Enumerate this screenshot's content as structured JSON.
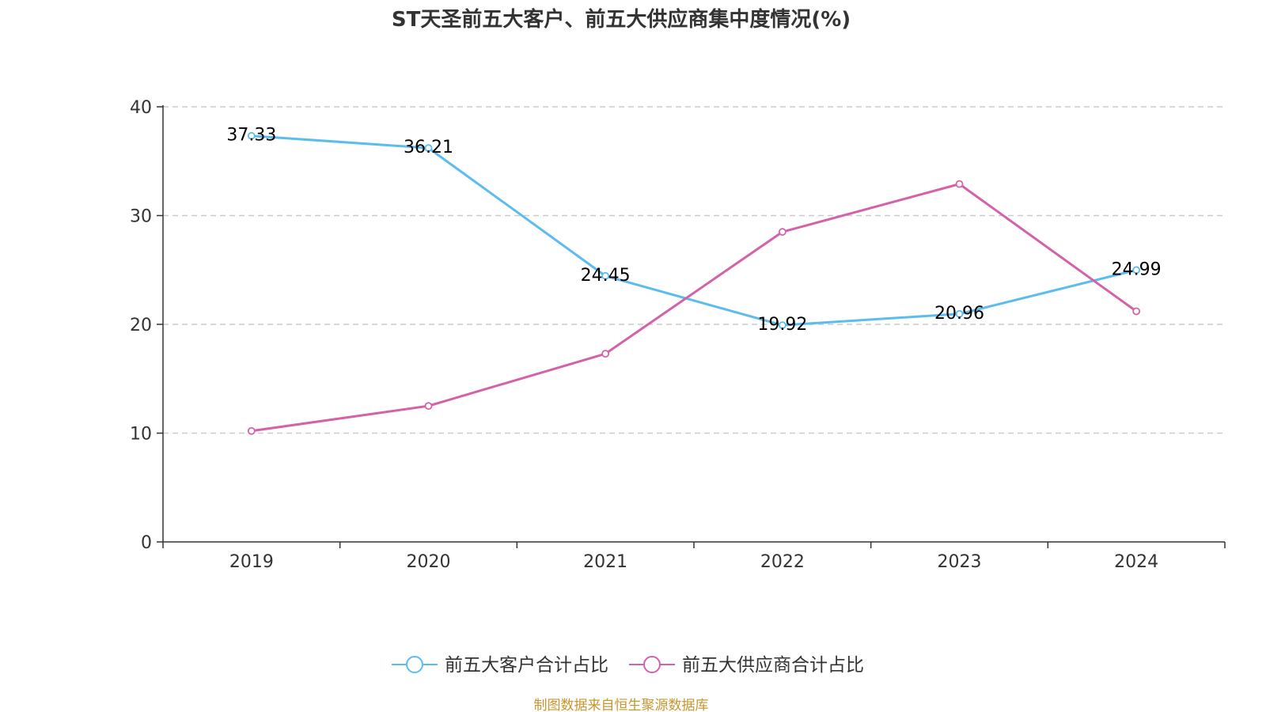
{
  "colors": {
    "customer": "#5bbcf0",
    "supplier": "#d462a8",
    "source_text": "#c8962e",
    "grid": "#cccccc",
    "axis": "#333333"
  },
  "chart_data": {
    "type": "line",
    "title": "ST天圣前五大客户、前五大供应商集中度情况(%)",
    "categories": [
      "2019",
      "2020",
      "2021",
      "2022",
      "2023",
      "2024"
    ],
    "ylim": [
      0,
      40
    ],
    "yticks": [
      0,
      10,
      20,
      30,
      40
    ],
    "grid": "horizontal-dashed",
    "legend_position": "bottom-center",
    "series": [
      {
        "name": "前五大客户合计占比",
        "values": [
          37.33,
          36.21,
          24.45,
          19.92,
          20.96,
          24.99
        ],
        "labels": [
          "37.33",
          "36.21",
          "24.45",
          "19.92",
          "20.96",
          "24.99"
        ]
      },
      {
        "name": "前五大供应商合计占比",
        "values": [
          10.2,
          12.5,
          17.3,
          28.5,
          32.9,
          21.2
        ]
      }
    ]
  },
  "source_note": "制图数据来自恒生聚源数据库"
}
